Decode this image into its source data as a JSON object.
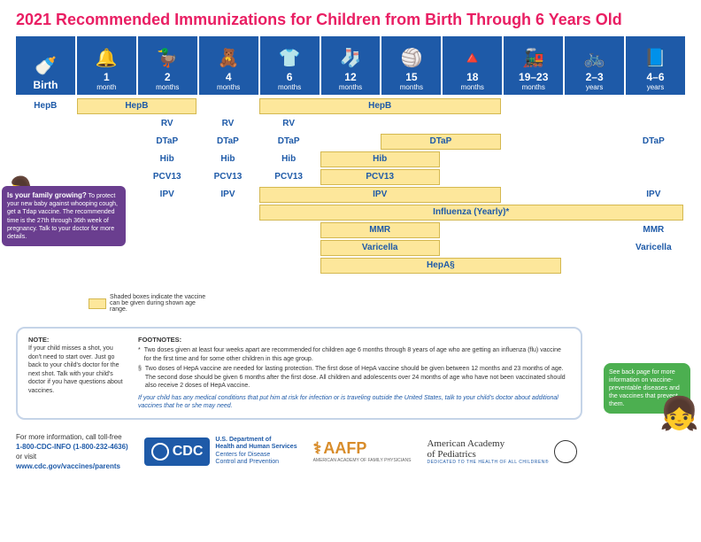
{
  "title": "2021 Recommended Immunizations for Children from Birth Through 6 Years Old",
  "ages": [
    {
      "num": "Birth",
      "unit": "",
      "icon": "🍼"
    },
    {
      "num": "1",
      "unit": "month",
      "icon": "🔔"
    },
    {
      "num": "2",
      "unit": "months",
      "icon": "🦆"
    },
    {
      "num": "4",
      "unit": "months",
      "icon": "🧸"
    },
    {
      "num": "6",
      "unit": "months",
      "icon": "👕"
    },
    {
      "num": "12",
      "unit": "months",
      "icon": "🧦"
    },
    {
      "num": "15",
      "unit": "months",
      "icon": "🏐"
    },
    {
      "num": "18",
      "unit": "months",
      "icon": "🔺"
    },
    {
      "num": "19–23",
      "unit": "months",
      "icon": "🚂"
    },
    {
      "num": "2–3",
      "unit": "years",
      "icon": "🚲"
    },
    {
      "num": "4–6",
      "unit": "years",
      "icon": "📘"
    }
  ],
  "chart": {
    "col_width": 68.7,
    "rows": [
      {
        "items": [
          {
            "type": "lbl",
            "col": 0,
            "span": 1,
            "text": "HepB"
          },
          {
            "type": "bar",
            "col": 1,
            "span": 2,
            "text": "HepB"
          },
          {
            "type": "bar",
            "col": 4,
            "span": 4,
            "text": "HepB"
          }
        ]
      },
      {
        "items": [
          {
            "type": "lbl",
            "col": 2,
            "span": 1,
            "text": "RV"
          },
          {
            "type": "lbl",
            "col": 3,
            "span": 1,
            "text": "RV"
          },
          {
            "type": "lbl",
            "col": 4,
            "span": 1,
            "text": "RV"
          }
        ]
      },
      {
        "items": [
          {
            "type": "lbl",
            "col": 2,
            "span": 1,
            "text": "DTaP"
          },
          {
            "type": "lbl",
            "col": 3,
            "span": 1,
            "text": "DTaP"
          },
          {
            "type": "lbl",
            "col": 4,
            "span": 1,
            "text": "DTaP"
          },
          {
            "type": "bar",
            "col": 6,
            "span": 2,
            "text": "DTaP"
          },
          {
            "type": "lbl",
            "col": 10,
            "span": 1,
            "text": "DTaP"
          }
        ]
      },
      {
        "items": [
          {
            "type": "lbl",
            "col": 2,
            "span": 1,
            "text": "Hib"
          },
          {
            "type": "lbl",
            "col": 3,
            "span": 1,
            "text": "Hib"
          },
          {
            "type": "lbl",
            "col": 4,
            "span": 1,
            "text": "Hib"
          },
          {
            "type": "bar",
            "col": 5,
            "span": 2,
            "text": "Hib"
          }
        ]
      },
      {
        "items": [
          {
            "type": "lbl",
            "col": 2,
            "span": 1,
            "text": "PCV13"
          },
          {
            "type": "lbl",
            "col": 3,
            "span": 1,
            "text": "PCV13"
          },
          {
            "type": "lbl",
            "col": 4,
            "span": 1,
            "text": "PCV13"
          },
          {
            "type": "bar",
            "col": 5,
            "span": 2,
            "text": "PCV13"
          }
        ]
      },
      {
        "items": [
          {
            "type": "lbl",
            "col": 2,
            "span": 1,
            "text": "IPV"
          },
          {
            "type": "lbl",
            "col": 3,
            "span": 1,
            "text": "IPV"
          },
          {
            "type": "bar",
            "col": 4,
            "span": 4,
            "text": "IPV"
          },
          {
            "type": "lbl",
            "col": 10,
            "span": 1,
            "text": "IPV"
          }
        ]
      },
      {
        "items": [
          {
            "type": "bar",
            "col": 4,
            "span": 7,
            "text": "Influenza (Yearly)*"
          }
        ]
      },
      {
        "items": [
          {
            "type": "bar",
            "col": 5,
            "span": 2,
            "text": "MMR"
          },
          {
            "type": "lbl",
            "col": 10,
            "span": 1,
            "text": "MMR"
          }
        ]
      },
      {
        "items": [
          {
            "type": "bar",
            "col": 5,
            "span": 2,
            "text": "Varicella"
          },
          {
            "type": "lbl",
            "col": 10,
            "span": 1,
            "text": "Varicella"
          }
        ]
      },
      {
        "items": [
          {
            "type": "bar",
            "col": 5,
            "span": 4,
            "text": "HepA§"
          }
        ]
      }
    ]
  },
  "callout1": {
    "heading": "Is your family growing?",
    "body": "To protect your new baby against whooping cough, get a Tdap vaccine. The recommended time is the 27th through 36th week of pregnancy. Talk to your doctor for more details."
  },
  "legend_text": "Shaded boxes indicate the vaccine can be given during shown age range.",
  "footnotes": {
    "note_heading": "NOTE:",
    "note_body": "If your child misses a shot, you don't need to start over. Just go back to your child's doctor for the next shot. Talk with your child's doctor if you have questions about vaccines.",
    "fn_heading": "FOOTNOTES:",
    "fn1": "Two doses given at least four weeks apart are recommended for children age 6 months through 8 years of age who are getting an influenza (flu) vaccine for the first time and for some other children in this age group.",
    "fn2": "Two doses of HepA vaccine are needed for lasting protection. The first dose of HepA vaccine should be given between 12 months and 23 months of age. The second dose should be given 6 months after the first dose. All children and adolescents over 24 months of age who have not been vaccinated should also receive 2 doses of HepA vaccine.",
    "medical": "If your child has any medical conditions that put him at risk for infection or is traveling outside the United States, talk to your child's doctor about additional vaccines that he or she may need."
  },
  "callout2": "See back page for more information on vaccine-preventable diseases and the vaccines that prevent them.",
  "footer": {
    "info1": "For more information, call toll-free",
    "phone": "1-800-CDC-INFO (1-800-232-4636)",
    "info2": "or visit",
    "url": "www.cdc.gov/vaccines/parents",
    "cdc": "CDC",
    "usdept1": "U.S. Department of",
    "usdept2": "Health and Human Services",
    "usdept3": "Centers for Disease",
    "usdept4": "Control and Prevention",
    "aafp": "AAFP",
    "aafp_sub": "AMERICAN ACADEMY OF FAMILY PHYSICIANS",
    "aap1": "American Academy",
    "aap2": "of Pediatrics",
    "aap_sub": "DEDICATED TO THE HEALTH OF ALL CHILDREN®"
  }
}
